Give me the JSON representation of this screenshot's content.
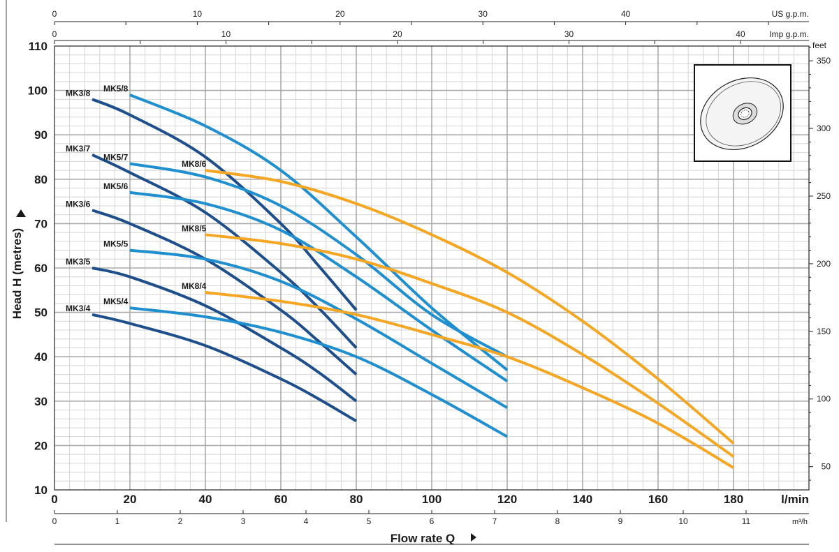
{
  "chart_data": {
    "type": "line",
    "title": "",
    "xlabel": "Flow rate Q",
    "ylabel": "Head H (metres)",
    "x_unit": "l/min",
    "xlim": [
      0,
      200
    ],
    "ylim": [
      10,
      110
    ],
    "x_ticks": [
      0,
      20,
      40,
      60,
      80,
      100,
      120,
      140,
      160,
      180
    ],
    "y_ticks": [
      10,
      20,
      30,
      40,
      50,
      60,
      70,
      80,
      90,
      100,
      110
    ],
    "grid": true,
    "secondary_axes": {
      "us_gpm": {
        "label": "US g.p.m.",
        "ticks": [
          0,
          10,
          20,
          30,
          40
        ]
      },
      "imp_gpm": {
        "label": "Imp g.p.m.",
        "ticks": [
          0,
          10,
          20,
          30,
          40
        ]
      },
      "m3h": {
        "label": "m³/h",
        "ticks": [
          0,
          1,
          2,
          3,
          4,
          5,
          6,
          7,
          8,
          9,
          10,
          11
        ]
      },
      "feet": {
        "label": "feet",
        "ticks": [
          50,
          100,
          150,
          200,
          250,
          300,
          350
        ]
      }
    },
    "colors": {
      "MK3": "#1e4f8c",
      "MK5": "#1f8fd0",
      "MK8": "#f5a623"
    },
    "series": [
      {
        "name": "MK3/8",
        "family": "MK3",
        "x": [
          10,
          20,
          40,
          60,
          70,
          80
        ],
        "y": [
          98,
          94.5,
          85,
          70,
          60.5,
          50.5
        ]
      },
      {
        "name": "MK3/7",
        "family": "MK3",
        "x": [
          10,
          20,
          40,
          60,
          70,
          80
        ],
        "y": [
          85.5,
          81.5,
          72.5,
          59,
          51,
          42
        ]
      },
      {
        "name": "MK3/6",
        "family": "MK3",
        "x": [
          10,
          20,
          40,
          60,
          70,
          80
        ],
        "y": [
          73,
          70,
          62,
          50.5,
          43.5,
          36
        ]
      },
      {
        "name": "MK3/5",
        "family": "MK3",
        "x": [
          10,
          20,
          40,
          60,
          70,
          80
        ],
        "y": [
          60,
          58,
          51.5,
          42,
          36.5,
          30
        ]
      },
      {
        "name": "MK3/4",
        "family": "MK3",
        "x": [
          10,
          20,
          40,
          60,
          70,
          80
        ],
        "y": [
          49.5,
          47.5,
          42.5,
          35,
          30.5,
          25.5
        ]
      },
      {
        "name": "MK5/8",
        "family": "MK5",
        "x": [
          20,
          40,
          60,
          80,
          100,
          120
        ],
        "y": [
          99,
          92,
          82,
          67,
          51,
          37
        ]
      },
      {
        "name": "MK5/7",
        "family": "MK5",
        "x": [
          20,
          40,
          60,
          80,
          100,
          120
        ],
        "y": [
          83.5,
          80.5,
          74,
          63,
          49.5,
          40
        ]
      },
      {
        "name": "MK5/6",
        "family": "MK5",
        "x": [
          20,
          40,
          60,
          80,
          100,
          120
        ],
        "y": [
          77,
          74.5,
          68.5,
          58,
          46,
          34.5
        ]
      },
      {
        "name": "MK5/5",
        "family": "MK5",
        "x": [
          20,
          40,
          60,
          80,
          100,
          120
        ],
        "y": [
          64,
          62,
          57,
          48.5,
          38.5,
          28.5
        ]
      },
      {
        "name": "MK5/4",
        "family": "MK5",
        "x": [
          20,
          40,
          60,
          80,
          100,
          120
        ],
        "y": [
          51,
          49,
          45.5,
          40,
          31.5,
          22
        ]
      },
      {
        "name": "MK8/6",
        "family": "MK8",
        "x": [
          40,
          60,
          80,
          100,
          120,
          140,
          160,
          180
        ],
        "y": [
          82,
          79.5,
          74.5,
          67.5,
          59,
          48,
          35,
          20.5
        ]
      },
      {
        "name": "MK8/5",
        "family": "MK8",
        "x": [
          40,
          60,
          80,
          100,
          120,
          140,
          160,
          180
        ],
        "y": [
          67.5,
          65.5,
          62,
          56.5,
          50,
          40.5,
          29.5,
          17.5
        ]
      },
      {
        "name": "MK8/4",
        "family": "MK8",
        "x": [
          40,
          60,
          80,
          100,
          120,
          140,
          160,
          180
        ],
        "y": [
          54.5,
          52.5,
          49.5,
          45,
          40,
          33,
          25,
          15
        ]
      }
    ]
  }
}
